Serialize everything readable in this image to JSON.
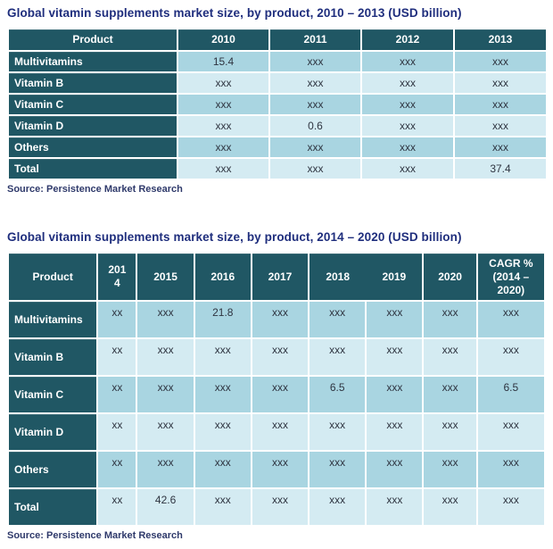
{
  "colors": {
    "title_text": "#1f2e7d",
    "header_bg": "#205764",
    "header_text": "#ffffff",
    "row_alt_dark": "#a9d5e1",
    "row_alt_light": "#d4ebf2",
    "cell_text": "#2e3440",
    "source_text": "#2f3a6b",
    "grid": "#ffffff"
  },
  "chart_data": [
    {
      "type": "table",
      "title": "Global vitamin supplements market size, by product, 2010 – 2013 (USD billion)",
      "source": "Source: Persistence Market Research",
      "columns": [
        "Product",
        "2010",
        "2011",
        "2012",
        "2013"
      ],
      "rows": [
        {
          "label": "Multivitamins",
          "values": [
            "15.4",
            "xxx",
            "xxx",
            "xxx"
          ]
        },
        {
          "label": "Vitamin B",
          "values": [
            "xxx",
            "xxx",
            "xxx",
            "xxx"
          ]
        },
        {
          "label": "Vitamin C",
          "values": [
            "xxx",
            "xxx",
            "xxx",
            "xxx"
          ]
        },
        {
          "label": "Vitamin D",
          "values": [
            "xxx",
            "0.6",
            "xxx",
            "xxx"
          ]
        },
        {
          "label": "Others",
          "values": [
            "xxx",
            "xxx",
            "xxx",
            "xxx"
          ]
        },
        {
          "label": "Total",
          "values": [
            "xxx",
            "xxx",
            "xxx",
            "37.4"
          ]
        }
      ]
    },
    {
      "type": "table",
      "title": "Global vitamin supplements market size, by product, 2014 – 2020 (USD billion)",
      "source": "Source: Persistence Market Research",
      "columns": [
        "Product",
        "2014",
        "2015",
        "2016",
        "2017",
        "2018",
        "2019",
        "2020",
        "CAGR % (2014 – 2020)"
      ],
      "rows": [
        {
          "label": "Multivitamins",
          "values": [
            "xx",
            "xxx",
            "21.8",
            "xxx",
            "xxx",
            "xxx",
            "xxx",
            "xxx"
          ]
        },
        {
          "label": "Vitamin B",
          "values": [
            "xx",
            "xxx",
            "xxx",
            "xxx",
            "xxx",
            "xxx",
            "xxx",
            "xxx"
          ]
        },
        {
          "label": "Vitamin C",
          "values": [
            "xx",
            "xxx",
            "xxx",
            "xxx",
            "6.5",
            "xxx",
            "xxx",
            "6.5"
          ]
        },
        {
          "label": "Vitamin D",
          "values": [
            "xx",
            "xxx",
            "xxx",
            "xxx",
            "xxx",
            "xxx",
            "xxx",
            "xxx"
          ]
        },
        {
          "label": "Others",
          "values": [
            "xx",
            "xxx",
            "xxx",
            "xxx",
            "xxx",
            "xxx",
            "xxx",
            "xxx"
          ]
        },
        {
          "label": "Total",
          "values": [
            "xx",
            "42.6",
            "xxx",
            "xxx",
            "xxx",
            "xxx",
            "xxx",
            "xxx"
          ]
        }
      ]
    }
  ]
}
